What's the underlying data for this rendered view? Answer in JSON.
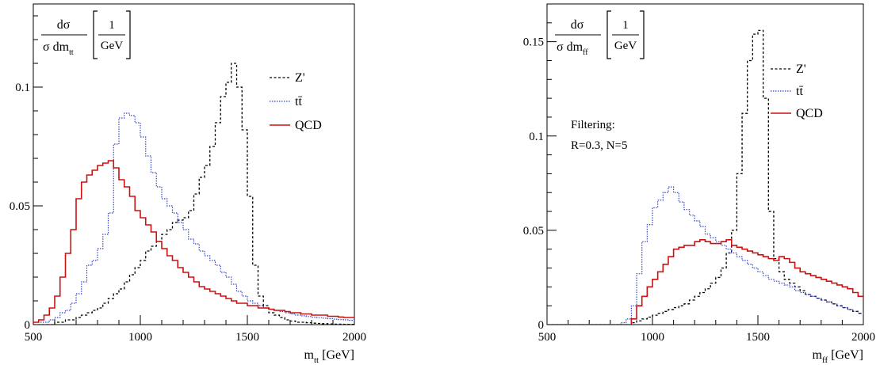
{
  "chart_data": [
    {
      "type": "line",
      "x": [
        500,
        525,
        550,
        575,
        600,
        625,
        650,
        675,
        700,
        725,
        750,
        775,
        800,
        825,
        850,
        875,
        900,
        925,
        950,
        975,
        1000,
        1025,
        1050,
        1075,
        1100,
        1125,
        1150,
        1175,
        1200,
        1225,
        1250,
        1275,
        1300,
        1325,
        1350,
        1375,
        1400,
        1425,
        1450,
        1475,
        1500,
        1525,
        1550,
        1575,
        1600,
        1625,
        1650,
        1675,
        1700,
        1725,
        1750,
        1775,
        1800,
        1825,
        1850,
        1875,
        1900,
        1925,
        1950,
        1975
      ],
      "xlim": [
        500,
        2000
      ],
      "ylim": [
        0,
        0.135
      ],
      "xticks": [
        "500",
        "1000",
        "1500",
        "2000"
      ],
      "yticks": [
        {
          "v": 0,
          "label": "0"
        },
        {
          "v": 0.05,
          "label": "0.05"
        },
        {
          "v": 0.1,
          "label": "0.1"
        }
      ],
      "xlabel": {
        "main": "m",
        "sub": "tt",
        "unit": "[GeV]"
      },
      "ylabel": {
        "num": "dσ",
        "den": "σ dm",
        "sub": "tt",
        "unit_num": "1",
        "unit_den": "GeV"
      },
      "annotation": [],
      "series": [
        {
          "name": "Z'",
          "color": "#000000",
          "dash": "3,2.5",
          "width": 1.3,
          "values": [
            0,
            0,
            0,
            0,
            0.001,
            0.001,
            0.002,
            0.002,
            0.003,
            0.004,
            0.005,
            0.006,
            0.007,
            0.009,
            0.011,
            0.013,
            0.015,
            0.018,
            0.021,
            0.024,
            0.027,
            0.031,
            0.033,
            0.035,
            0.038,
            0.04,
            0.043,
            0.044,
            0.045,
            0.048,
            0.055,
            0.062,
            0.067,
            0.075,
            0.085,
            0.096,
            0.102,
            0.11,
            0.1,
            0.082,
            0.054,
            0.025,
            0.012,
            0.008,
            0.005,
            0.004,
            0.003,
            0.002,
            0.0015,
            0.001,
            0.001,
            0.0008,
            0.0006,
            0.0005,
            0.0004,
            0.0003,
            0.0002,
            0.0002,
            0.0001,
            0.0001
          ]
        },
        {
          "name": "tt̄",
          "color": "#3344cc",
          "dash": "1.5,1.5",
          "width": 1.2,
          "values": [
            0,
            0.001,
            0.001,
            0.002,
            0.003,
            0.005,
            0.006,
            0.009,
            0.013,
            0.018,
            0.025,
            0.027,
            0.032,
            0.038,
            0.047,
            0.076,
            0.087,
            0.089,
            0.088,
            0.085,
            0.079,
            0.071,
            0.064,
            0.058,
            0.053,
            0.05,
            0.047,
            0.043,
            0.04,
            0.036,
            0.034,
            0.031,
            0.029,
            0.027,
            0.025,
            0.022,
            0.02,
            0.017,
            0.014,
            0.012,
            0.01,
            0.009,
            0.008,
            0.007,
            0.0065,
            0.006,
            0.0055,
            0.005,
            0.0045,
            0.004,
            0.0037,
            0.0034,
            0.0031,
            0.0029,
            0.0027,
            0.0025,
            0.0023,
            0.0021,
            0.002,
            0.0018
          ]
        },
        {
          "name": "QCD",
          "color": "#cc1111",
          "dash": "",
          "width": 1.6,
          "values": [
            0.001,
            0.002,
            0.004,
            0.007,
            0.012,
            0.02,
            0.03,
            0.04,
            0.053,
            0.06,
            0.063,
            0.065,
            0.067,
            0.068,
            0.069,
            0.066,
            0.061,
            0.058,
            0.054,
            0.048,
            0.045,
            0.042,
            0.039,
            0.035,
            0.032,
            0.029,
            0.027,
            0.024,
            0.022,
            0.02,
            0.018,
            0.016,
            0.015,
            0.014,
            0.013,
            0.012,
            0.011,
            0.01,
            0.009,
            0.009,
            0.008,
            0.008,
            0.007,
            0.007,
            0.0065,
            0.006,
            0.006,
            0.0055,
            0.005,
            0.005,
            0.0045,
            0.0045,
            0.004,
            0.004,
            0.004,
            0.0035,
            0.0035,
            0.0032,
            0.003,
            0.003
          ]
        }
      ]
    },
    {
      "type": "line",
      "x": [
        500,
        525,
        550,
        575,
        600,
        625,
        650,
        675,
        700,
        725,
        750,
        775,
        800,
        825,
        850,
        875,
        900,
        925,
        950,
        975,
        1000,
        1025,
        1050,
        1075,
        1100,
        1125,
        1150,
        1175,
        1200,
        1225,
        1250,
        1275,
        1300,
        1325,
        1350,
        1375,
        1400,
        1425,
        1450,
        1475,
        1500,
        1525,
        1550,
        1575,
        1600,
        1625,
        1650,
        1675,
        1700,
        1725,
        1750,
        1775,
        1800,
        1825,
        1850,
        1875,
        1900,
        1925,
        1950,
        1975
      ],
      "xlim": [
        500,
        2000
      ],
      "ylim": [
        0,
        0.17
      ],
      "xticks": [
        "500",
        "1000",
        "1500",
        "2000"
      ],
      "yticks": [
        {
          "v": 0,
          "label": "0"
        },
        {
          "v": 0.05,
          "label": "0.05"
        },
        {
          "v": 0.1,
          "label": "0.1"
        },
        {
          "v": 0.15,
          "label": "0.15"
        }
      ],
      "xlabel": {
        "main": "m",
        "sub": "ff",
        "unit": "[GeV]"
      },
      "ylabel": {
        "num": "dσ",
        "den": "σ dm",
        "sub": "ff",
        "unit_num": "1",
        "unit_den": "GeV"
      },
      "annotation": [
        "Filtering:",
        "R=0.3, N=5"
      ],
      "series": [
        {
          "name": "Z'",
          "color": "#000000",
          "dash": "3,2.5",
          "width": 1.3,
          "values": [
            0,
            0,
            0,
            0,
            0,
            0,
            0,
            0,
            0,
            0,
            0,
            0,
            0,
            0,
            0,
            0,
            0.001,
            0.002,
            0.003,
            0.004,
            0.005,
            0.006,
            0.007,
            0.008,
            0.009,
            0.01,
            0.011,
            0.013,
            0.015,
            0.017,
            0.019,
            0.022,
            0.025,
            0.03,
            0.038,
            0.05,
            0.08,
            0.112,
            0.14,
            0.154,
            0.156,
            0.12,
            0.06,
            0.035,
            0.028,
            0.024,
            0.022,
            0.02,
            0.018,
            0.016,
            0.015,
            0.014,
            0.013,
            0.012,
            0.011,
            0.01,
            0.009,
            0.008,
            0.007,
            0.006
          ]
        },
        {
          "name": "tt̄",
          "color": "#3344cc",
          "dash": "1.5,1.5",
          "width": 1.2,
          "values": [
            0,
            0,
            0,
            0,
            0,
            0,
            0,
            0,
            0,
            0,
            0,
            0,
            0,
            0,
            0.001,
            0.003,
            0.01,
            0.027,
            0.044,
            0.053,
            0.062,
            0.066,
            0.07,
            0.073,
            0.07,
            0.065,
            0.061,
            0.058,
            0.055,
            0.052,
            0.048,
            0.046,
            0.044,
            0.042,
            0.04,
            0.038,
            0.036,
            0.034,
            0.032,
            0.03,
            0.028,
            0.026,
            0.024,
            0.023,
            0.022,
            0.021,
            0.02,
            0.018,
            0.017,
            0.016,
            0.015,
            0.014,
            0.013,
            0.012,
            0.011,
            0.01,
            0.009,
            0.008,
            0.007,
            0.006
          ]
        },
        {
          "name": "QCD",
          "color": "#cc1111",
          "dash": "",
          "width": 1.6,
          "values": [
            0,
            0,
            0,
            0,
            0,
            0,
            0,
            0,
            0,
            0,
            0,
            0,
            0,
            0,
            0,
            0,
            0.003,
            0.01,
            0.015,
            0.02,
            0.024,
            0.028,
            0.032,
            0.036,
            0.04,
            0.041,
            0.042,
            0.042,
            0.044,
            0.045,
            0.044,
            0.043,
            0.043,
            0.044,
            0.045,
            0.042,
            0.041,
            0.04,
            0.039,
            0.038,
            0.037,
            0.036,
            0.035,
            0.034,
            0.036,
            0.035,
            0.033,
            0.03,
            0.028,
            0.027,
            0.026,
            0.025,
            0.024,
            0.023,
            0.022,
            0.021,
            0.02,
            0.019,
            0.017,
            0.015
          ]
        }
      ]
    }
  ]
}
